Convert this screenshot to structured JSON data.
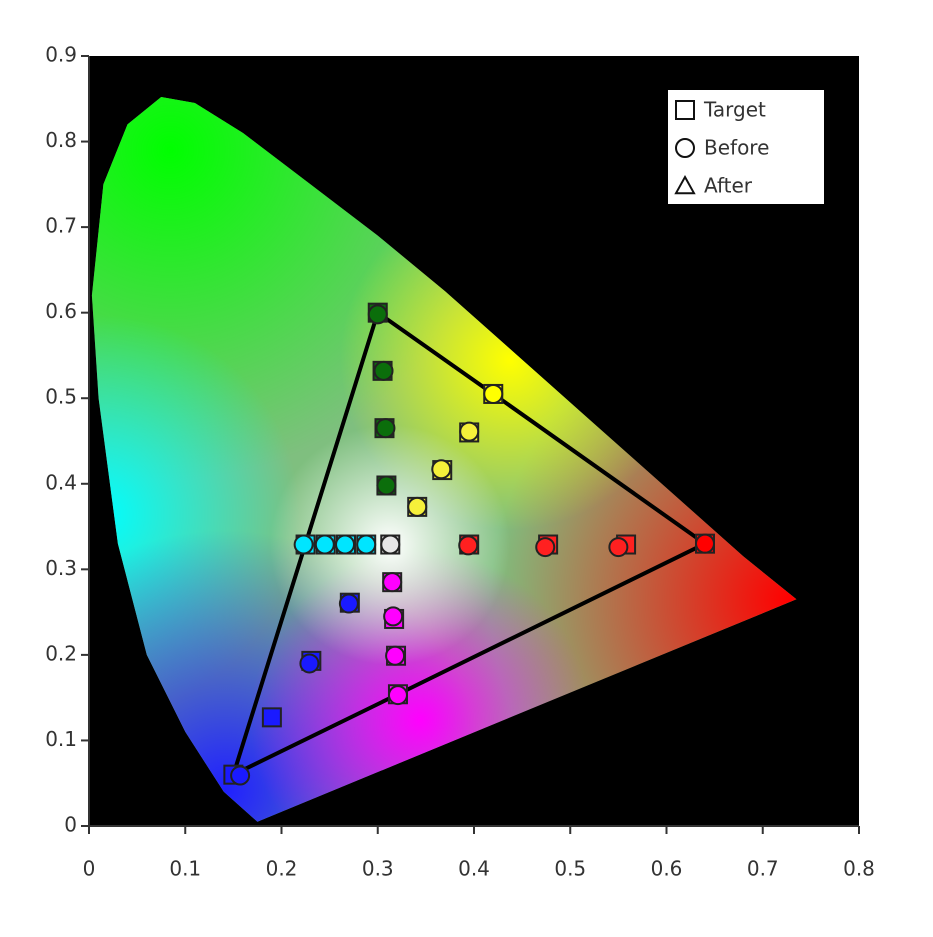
{
  "chart_data": {
    "type": "scatter",
    "background": "#000000",
    "legend": "upper right",
    "xlim": [
      0,
      0.8
    ],
    "ylim": [
      0,
      0.9
    ],
    "xticks": [
      0,
      0.1,
      0.2,
      0.3,
      0.4,
      0.5,
      0.6,
      0.7,
      0.8
    ],
    "yticks": [
      0,
      0.1,
      0.2,
      0.3,
      0.4,
      0.5,
      0.6,
      0.7,
      0.8,
      0.9
    ],
    "outline": {
      "color": "#000000",
      "x": [
        0.3,
        0.42,
        0.64,
        0.321,
        0.15,
        0.3
      ],
      "y": [
        0.6,
        0.505,
        0.33,
        0.154,
        0.06,
        0.6
      ]
    },
    "series": [
      {
        "name": "Target",
        "marker": "square",
        "colors": [
          "#0b6e0b",
          "#0b6e0b",
          "#0b6e0b",
          "#0b6e0b",
          "#ffff00",
          "#f5f03a",
          "#f5f03a",
          "#f5f03a",
          "#ff0000",
          "#ff2020",
          "#ff2020",
          "#ff2020",
          "#00e5ff",
          "#00e5ff",
          "#00e5ff",
          "#00e5ff",
          "#e6e6e6",
          "#ff00ff",
          "#ff00ff",
          "#ff00ff",
          "#ff00ff",
          "#1a1aff",
          "#1a1aff",
          "#1a1aff",
          "#1a1aff"
        ],
        "x": [
          0.3,
          0.305,
          0.307,
          0.309,
          0.42,
          0.395,
          0.367,
          0.341,
          0.64,
          0.558,
          0.477,
          0.395,
          0.225,
          0.246,
          0.267,
          0.288,
          0.313,
          0.315,
          0.317,
          0.319,
          0.321,
          0.15,
          0.19,
          0.231,
          0.271
        ],
        "y": [
          0.6,
          0.532,
          0.465,
          0.398,
          0.505,
          0.46,
          0.416,
          0.373,
          0.33,
          0.329,
          0.329,
          0.329,
          0.329,
          0.329,
          0.329,
          0.329,
          0.329,
          0.285,
          0.242,
          0.199,
          0.154,
          0.06,
          0.127,
          0.193,
          0.261
        ]
      },
      {
        "name": "Before",
        "marker": "circle",
        "colors": [
          "#0b6e0b",
          "#0b6e0b",
          "#0b6e0b",
          "#0b6e0b",
          "#ffff00",
          "#f5f03a",
          "#f5f03a",
          "#f5f03a",
          "#ff0000",
          "#ff2020",
          "#ff2020",
          "#ff2020",
          "#00e5ff",
          "#00e5ff",
          "#00e5ff",
          "#00e5ff",
          "#e6e6e6",
          "#ff00ff",
          "#ff00ff",
          "#ff00ff",
          "#ff00ff",
          "#1a1aff",
          "#1a1aff",
          "#1a1aff"
        ],
        "x": [
          0.3,
          0.306,
          0.308,
          0.309,
          0.42,
          0.395,
          0.366,
          0.341,
          0.64,
          0.55,
          0.474,
          0.394,
          0.223,
          0.245,
          0.266,
          0.288,
          0.313,
          0.315,
          0.316,
          0.318,
          0.321,
          0.157,
          0.229,
          0.27
        ],
        "y": [
          0.598,
          0.532,
          0.465,
          0.398,
          0.505,
          0.461,
          0.417,
          0.373,
          0.33,
          0.326,
          0.326,
          0.328,
          0.329,
          0.329,
          0.329,
          0.329,
          0.329,
          0.285,
          0.245,
          0.199,
          0.153,
          0.059,
          0.19,
          0.26
        ]
      },
      {
        "name": "After",
        "marker": "triangle",
        "colors": [],
        "x": [],
        "y": []
      }
    ]
  }
}
